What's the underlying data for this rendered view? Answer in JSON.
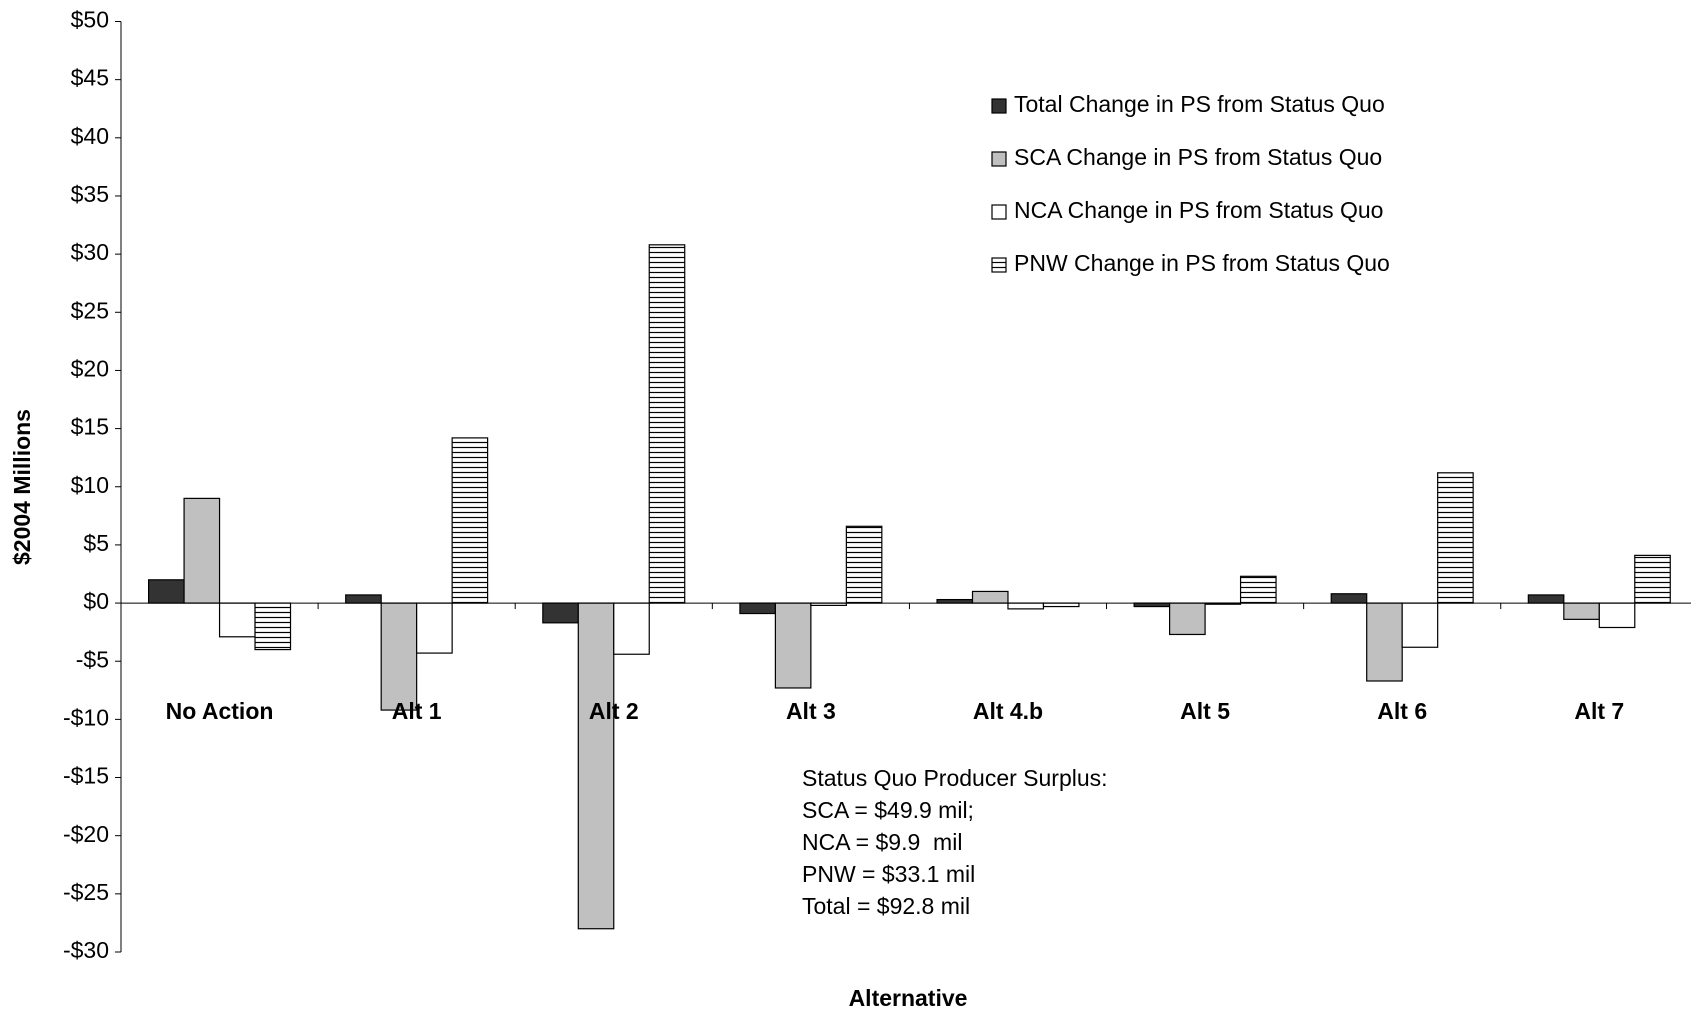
{
  "chart_data": {
    "type": "bar",
    "y_label": "$2004 Millions",
    "x_label": "Alternative",
    "categories": [
      "No Action",
      "Alt 1",
      "Alt 2",
      "Alt 3",
      "Alt 4.b",
      "Alt 5",
      "Alt 6",
      "Alt 7"
    ],
    "series": [
      {
        "name": "Total Change in PS from Status Quo",
        "color": "#333333",
        "values": [
          2.0,
          0.7,
          -1.7,
          -0.9,
          0.3,
          -0.3,
          0.8,
          0.7
        ]
      },
      {
        "name": "SCA Change in PS from Status Quo",
        "color": "#c0c0c0",
        "values": [
          9.0,
          -9.2,
          -28.0,
          -7.3,
          1.0,
          -2.7,
          -6.7,
          -1.4
        ]
      },
      {
        "name": "NCA Change in PS from Status Quo",
        "color": "#ffffff",
        "values": [
          -2.9,
          -4.3,
          -4.4,
          -0.2,
          -0.5,
          -0.1,
          -3.8,
          -2.1
        ]
      },
      {
        "name": "PNW Change in PS from Status Quo",
        "color": "#000000",
        "pattern": "horizontal-stripes",
        "values": [
          -4.0,
          14.2,
          30.8,
          6.6,
          -0.3,
          2.3,
          11.2,
          4.1
        ]
      }
    ],
    "ylim": [
      -30,
      50
    ],
    "yticks": [
      {
        "value": -30,
        "label": "-$30"
      },
      {
        "value": -25,
        "label": "-$25"
      },
      {
        "value": -20,
        "label": "-$20"
      },
      {
        "value": -15,
        "label": "-$15"
      },
      {
        "value": -10,
        "label": "-$10"
      },
      {
        "value": -5,
        "label": "-$5"
      },
      {
        "value": 0,
        "label": "$0"
      },
      {
        "value": 5,
        "label": "$5"
      },
      {
        "value": 10,
        "label": "$10"
      },
      {
        "value": 15,
        "label": "$15"
      },
      {
        "value": 20,
        "label": "$20"
      },
      {
        "value": 25,
        "label": "$25"
      },
      {
        "value": 30,
        "label": "$30"
      },
      {
        "value": 35,
        "label": "$35"
      },
      {
        "value": 40,
        "label": "$40"
      },
      {
        "value": 45,
        "label": "$45"
      },
      {
        "value": 50,
        "label": "$50"
      }
    ],
    "grid": false,
    "legend": "upper right",
    "annotation": [
      "Status Quo Producer Surplus:",
      "SCA = $49.9 mil;",
      "NCA = $9.9  mil",
      "PNW = $33.1 mil",
      "Total = $92.8 mil"
    ]
  }
}
